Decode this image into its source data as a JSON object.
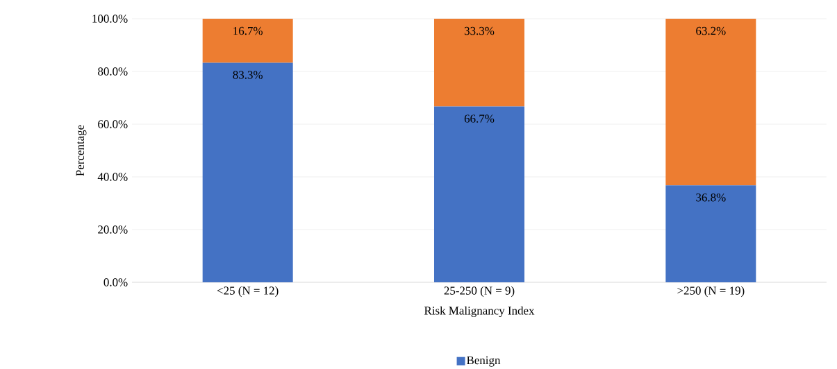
{
  "chart_data": {
    "type": "bar",
    "stacked": true,
    "xlabel": "Risk Malignancy Index",
    "ylabel": "Percentage",
    "categories": [
      "<25 (N = 12)",
      "25-250 (N = 9)",
      ">250 (N = 19)"
    ],
    "series": [
      {
        "name": "Benign",
        "color": "#4472c4",
        "values": [
          83.3,
          66.7,
          36.8
        ],
        "value_labels": [
          "83.3%",
          "66.7%",
          "36.8%"
        ]
      },
      {
        "color": "#ed7d31",
        "values": [
          16.7,
          33.3,
          63.2
        ],
        "value_labels": [
          "16.7%",
          "33.3%",
          "63.2%"
        ]
      }
    ],
    "ylim": [
      0,
      100
    ],
    "yticks": [
      {
        "value": 0,
        "label": "0.0%"
      },
      {
        "value": 20,
        "label": "20.0%"
      },
      {
        "value": 40,
        "label": "40.0%"
      },
      {
        "value": 60,
        "label": "60.0%"
      },
      {
        "value": 80,
        "label": "80.0%"
      },
      {
        "value": 100,
        "label": "100.0%"
      }
    ],
    "grid": "y",
    "legend": "bottom"
  }
}
